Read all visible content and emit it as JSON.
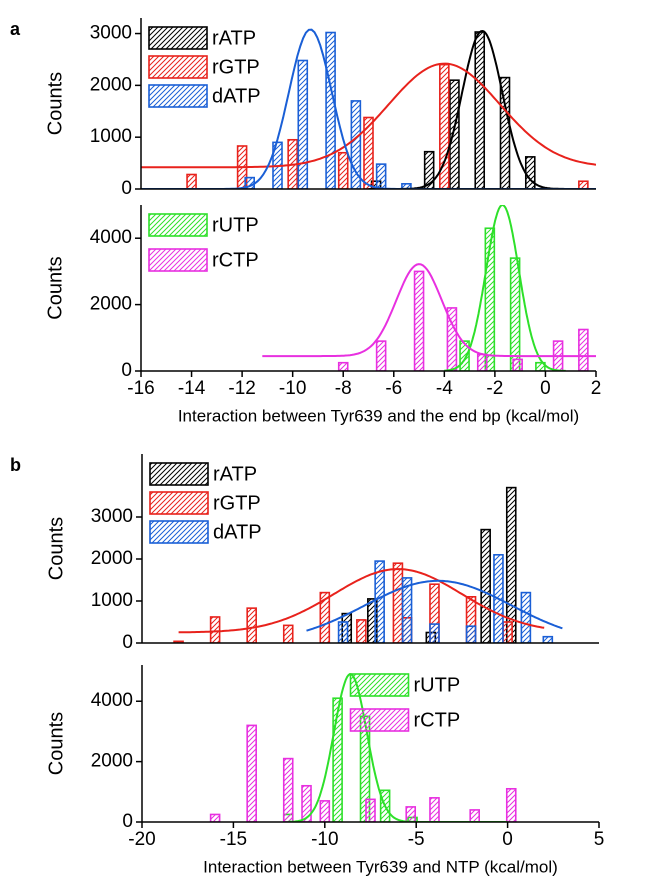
{
  "chart_data": [
    {
      "type": "bar",
      "panel_label": "a",
      "ylabel": "Counts",
      "xlim": [
        -16,
        2
      ],
      "ylim": [
        0,
        3300
      ],
      "yticks": [
        0,
        1000,
        2000,
        3000
      ],
      "legend": "upper left",
      "series": [
        {
          "name": "rATP",
          "color": "#000000",
          "x": [
            -6.7,
            -4.6,
            -3.6,
            -2.6,
            -1.6,
            -0.6
          ],
          "values": [
            150,
            720,
            2100,
            3030,
            2150,
            620
          ],
          "fit": {
            "center": -2.5,
            "peak": 3050,
            "sigma": 0.8,
            "baseline": 0,
            "from": -7,
            "to": 2
          }
        },
        {
          "name": "rGTP",
          "color": "#e8221c",
          "x": [
            -14,
            -12,
            -10,
            -8,
            -7,
            -4,
            1.5
          ],
          "values": [
            280,
            830,
            950,
            700,
            1380,
            2400,
            150
          ],
          "fit": {
            "center": -4,
            "peak": 2420,
            "sigma": 2.2,
            "baseline": 420,
            "from": -16,
            "to": 2
          }
        },
        {
          "name": "dATP",
          "color": "#1a5fd6",
          "x": [
            -11.7,
            -10.6,
            -9.6,
            -8.5,
            -7.5,
            -6.5,
            -5.5
          ],
          "values": [
            220,
            900,
            2480,
            3020,
            1700,
            480,
            100
          ],
          "fit": {
            "center": -9.3,
            "peak": 3080,
            "sigma": 0.85,
            "baseline": 0,
            "from": -16,
            "to": 2
          }
        }
      ]
    },
    {
      "type": "bar",
      "ylabel": "Counts",
      "xlabel": "Interaction between Tyr639 and the end bp (kcal/mol)",
      "xlim": [
        -16,
        2
      ],
      "ylim": [
        0,
        5000
      ],
      "xticks": [
        -16,
        -14,
        -12,
        -10,
        -8,
        -6,
        -4,
        -2,
        0,
        2
      ],
      "yticks": [
        0,
        2000,
        4000
      ],
      "legend": "upper left",
      "series": [
        {
          "name": "rUTP",
          "color": "#2ee02a",
          "x": [
            -3.2,
            -2.2,
            -1.2,
            -0.2
          ],
          "values": [
            900,
            4300,
            3400,
            250
          ],
          "fit": {
            "center": -1.7,
            "peak": 5000,
            "sigma": 0.65,
            "baseline": 0,
            "from": -4,
            "to": 0.8
          }
        },
        {
          "name": "rCTP",
          "color": "#e830e0",
          "x": [
            -8,
            -6.5,
            -5,
            -3.7,
            -2.5,
            -1.1,
            0.5,
            1.5
          ],
          "values": [
            250,
            900,
            3000,
            1900,
            500,
            350,
            900,
            1250
          ],
          "fit": {
            "center": -5,
            "peak": 3220,
            "sigma": 0.9,
            "baseline": 450,
            "from": -11.2,
            "to": 2
          }
        }
      ]
    },
    {
      "type": "bar",
      "panel_label": "b",
      "ylabel": "Counts",
      "xlim": [
        -20,
        5
      ],
      "ylim": [
        0,
        4500
      ],
      "yticks": [
        0,
        1000,
        2000,
        3000
      ],
      "legend": "upper left",
      "series": [
        {
          "name": "rATP",
          "color": "#000000",
          "x": [
            -8.8,
            -7.4,
            -4.2,
            -1.2,
            0.2
          ],
          "values": [
            700,
            1050,
            250,
            2700,
            3700
          ]
        },
        {
          "name": "rGTP",
          "color": "#e8221c",
          "x": [
            -18,
            -16,
            -14,
            -12,
            -10,
            -8,
            -6,
            -5.5,
            -4,
            -2,
            0
          ],
          "values": [
            40,
            620,
            830,
            420,
            1200,
            550,
            1900,
            600,
            1400,
            1100,
            500
          ],
          "fit": {
            "center": -6,
            "peak": 1760,
            "sigma": 3.5,
            "baseline": 250,
            "from": -18,
            "to": 2
          }
        },
        {
          "name": "dATP",
          "color": "#1a5fd6",
          "x": [
            -9,
            -7,
            -5.5,
            -4,
            -2,
            -0.5,
            1,
            2.2
          ],
          "values": [
            500,
            1950,
            1550,
            450,
            400,
            2100,
            1200,
            150
          ],
          "fit": {
            "center": -3.8,
            "peak": 1480,
            "sigma": 4,
            "baseline": 0,
            "from": -11,
            "to": 3
          }
        }
      ]
    },
    {
      "type": "bar",
      "ylabel": "Counts",
      "xlabel": "Interaction between Tyr639 and NTP (kcal/mol)",
      "xlim": [
        -20,
        5
      ],
      "ylim": [
        0,
        5200
      ],
      "xticks": [
        -20,
        -15,
        -10,
        -5,
        0,
        5
      ],
      "yticks": [
        0,
        2000,
        4000
      ],
      "legend": "upper center",
      "series": [
        {
          "name": "rUTP",
          "color": "#2ee02a",
          "x": [
            -12,
            -9.3,
            -7.8,
            -6.7,
            -5.2
          ],
          "values": [
            250,
            4100,
            3500,
            1050,
            150
          ],
          "fit": {
            "center": -8.6,
            "peak": 4900,
            "sigma": 0.9,
            "baseline": 0,
            "from": -12,
            "to": 0
          }
        },
        {
          "name": "rCTP",
          "color": "#e830e0",
          "x": [
            -16,
            -14,
            -12,
            -11,
            -10,
            -7.5,
            -5.3,
            -4,
            -1.8,
            0.2
          ],
          "values": [
            250,
            3200,
            2100,
            1200,
            700,
            750,
            500,
            800,
            400,
            1100
          ]
        }
      ]
    }
  ]
}
